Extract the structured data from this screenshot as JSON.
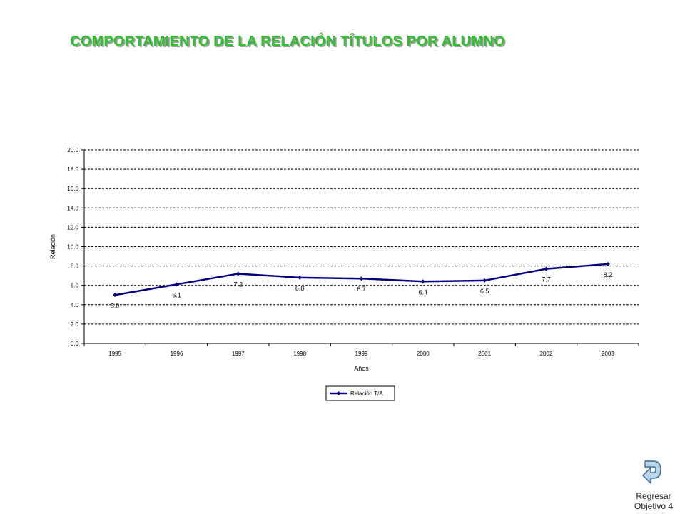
{
  "title": "COMPORTAMIENTO DE LA RELACIÓN TÍTULOS POR ALUMNO",
  "colors": {
    "title": "#2fbf2f",
    "title_shadow": "#9a9a9a",
    "series": "#000080",
    "grid": "#000000",
    "icon_fill": "#b9d3e9",
    "icon_stroke": "#3a6f9e"
  },
  "chart_data": {
    "type": "line",
    "categories": [
      "1995",
      "1996",
      "1997",
      "1998",
      "1999",
      "2000",
      "2001",
      "2002",
      "2003"
    ],
    "series": [
      {
        "name": "Relación T/A",
        "values": [
          5.0,
          6.1,
          7.2,
          6.8,
          6.7,
          6.4,
          6.5,
          7.7,
          8.2
        ],
        "labels": [
          "5.0",
          "6.1",
          "7.2",
          "6.8",
          "6.7",
          "6.4",
          "6.5",
          "7.7",
          "8.2"
        ]
      }
    ],
    "xlabel": "Años",
    "ylabel": "Relación",
    "ylim": [
      0,
      20
    ],
    "yticks": [
      "0.0",
      "2.0",
      "4.0",
      "6.0",
      "8.0",
      "10.0",
      "12.0",
      "14.0",
      "16.0",
      "18.0",
      "20.0"
    ],
    "grid": "horizontal dashed",
    "legend": "bottom-center"
  },
  "nav": {
    "icon": "return-arrow-icon",
    "line1": "Regresar",
    "line2": "Objetivo 4"
  }
}
